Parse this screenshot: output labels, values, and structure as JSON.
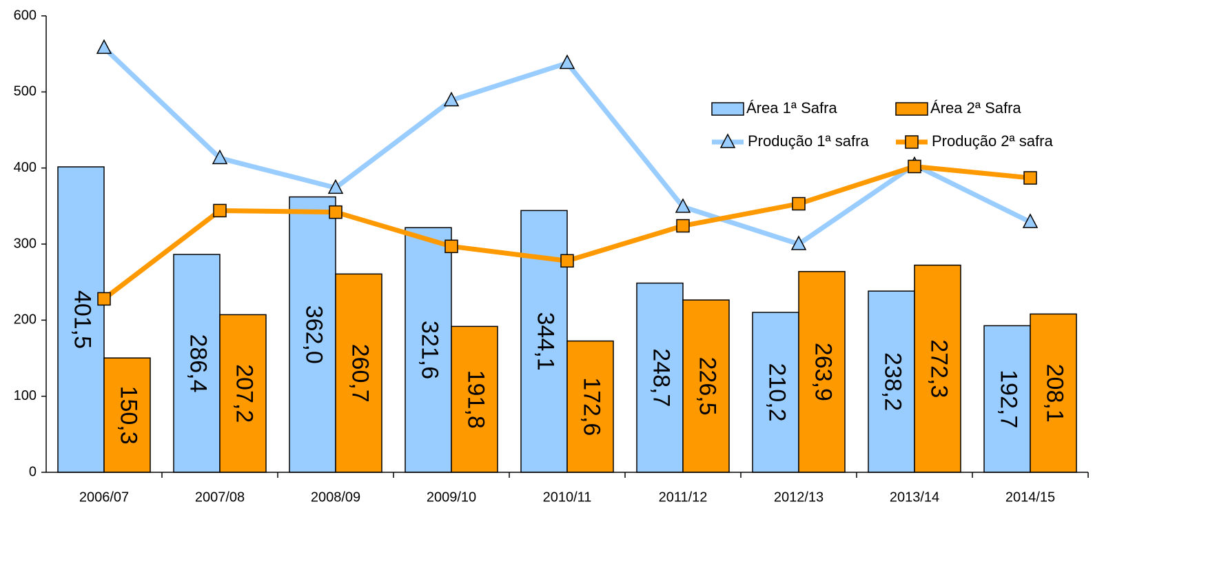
{
  "chart_data": {
    "type": "bar",
    "categories": [
      "2006/07",
      "2007/08",
      "2008/09",
      "2009/10",
      "2010/11",
      "2011/12",
      "2012/13",
      "2013/14",
      "2014/15"
    ],
    "series": [
      {
        "name": "Área 1ª Safra",
        "type": "bar",
        "color": "#99ccff",
        "values": [
          401.5,
          286.4,
          362.0,
          321.6,
          344.1,
          248.7,
          210.2,
          238.2,
          192.7
        ],
        "value_labels": [
          "401,5",
          "286,4",
          "362,0",
          "321,6",
          "344,1",
          "248,7",
          "210,2",
          "238,2",
          "192,7"
        ]
      },
      {
        "name": "Área 2ª Safra",
        "type": "bar",
        "color": "#ff9900",
        "values": [
          150.3,
          207.2,
          260.7,
          191.8,
          172.6,
          226.5,
          263.9,
          272.3,
          208.1
        ],
        "value_labels": [
          "150,3",
          "207,2",
          "260,7",
          "191,8",
          "172,6",
          "226,5",
          "263,9",
          "272,3",
          "208,1"
        ]
      },
      {
        "name": "Produção 1ª safra",
        "type": "line",
        "color": "#99ccff",
        "marker": "triangle",
        "values": [
          558,
          413,
          374,
          489,
          538,
          349,
          300,
          404,
          329
        ]
      },
      {
        "name": "Produção 2ª safra",
        "type": "line",
        "color": "#ff9900",
        "marker": "square",
        "values": [
          228,
          344,
          342,
          297,
          278,
          324,
          353,
          402,
          387
        ]
      }
    ],
    "ylim": [
      0,
      600
    ],
    "yticks": [
      0,
      100,
      200,
      300,
      400,
      500,
      600
    ]
  }
}
